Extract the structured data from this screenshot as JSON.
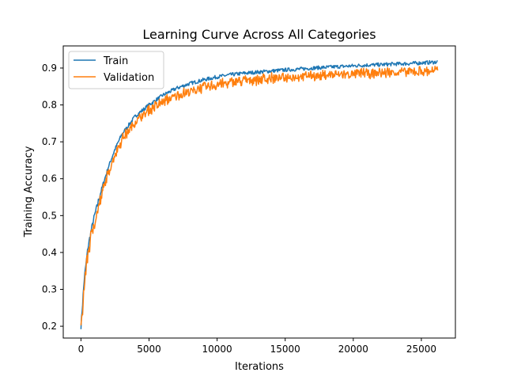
{
  "chart_data": {
    "type": "line",
    "title": "Learning Curve Across All Categories",
    "xlabel": "Iterations",
    "ylabel": "Training Accuracy",
    "xlim": [
      -1300,
      27500
    ],
    "ylim": [
      0.168,
      0.96
    ],
    "xticks": [
      0,
      5000,
      10000,
      15000,
      20000,
      25000
    ],
    "yticks": [
      0.2,
      0.3,
      0.4,
      0.5,
      0.6,
      0.7,
      0.8,
      0.9
    ],
    "grid": false,
    "legend": {
      "placement": "top-left"
    },
    "series": [
      {
        "name": "Train",
        "color": "#1f77b4",
        "noise": 0.005,
        "x": [
          0,
          250,
          500,
          750,
          1000,
          1500,
          2000,
          2500,
          3000,
          4000,
          5000,
          6000,
          7000,
          8000,
          9000,
          10000,
          11000,
          12000,
          13000,
          14000,
          15000,
          16000,
          17000,
          18000,
          19000,
          20000,
          21000,
          22000,
          23000,
          24000,
          25000,
          26000,
          26200
        ],
        "y": [
          0.2,
          0.33,
          0.41,
          0.46,
          0.5,
          0.57,
          0.63,
          0.68,
          0.72,
          0.77,
          0.8,
          0.826,
          0.845,
          0.858,
          0.868,
          0.876,
          0.882,
          0.886,
          0.889,
          0.892,
          0.895,
          0.897,
          0.9,
          0.902,
          0.904,
          0.906,
          0.908,
          0.909,
          0.911,
          0.912,
          0.914,
          0.916,
          0.917
        ]
      },
      {
        "name": "Validation",
        "color": "#ff7f0e",
        "noise": 0.012,
        "x": [
          0,
          250,
          500,
          750,
          1000,
          1500,
          2000,
          2500,
          3000,
          4000,
          5000,
          6000,
          7000,
          8000,
          9000,
          10000,
          11000,
          12000,
          13000,
          14000,
          15000,
          16000,
          17000,
          18000,
          19000,
          20000,
          21000,
          22000,
          23000,
          24000,
          25000,
          26000,
          26200
        ],
        "y": [
          0.2,
          0.32,
          0.4,
          0.45,
          0.49,
          0.56,
          0.62,
          0.67,
          0.71,
          0.76,
          0.79,
          0.812,
          0.83,
          0.842,
          0.852,
          0.86,
          0.866,
          0.871,
          0.874,
          0.877,
          0.88,
          0.882,
          0.884,
          0.886,
          0.888,
          0.889,
          0.891,
          0.892,
          0.894,
          0.895,
          0.896,
          0.898,
          0.898
        ]
      }
    ]
  }
}
